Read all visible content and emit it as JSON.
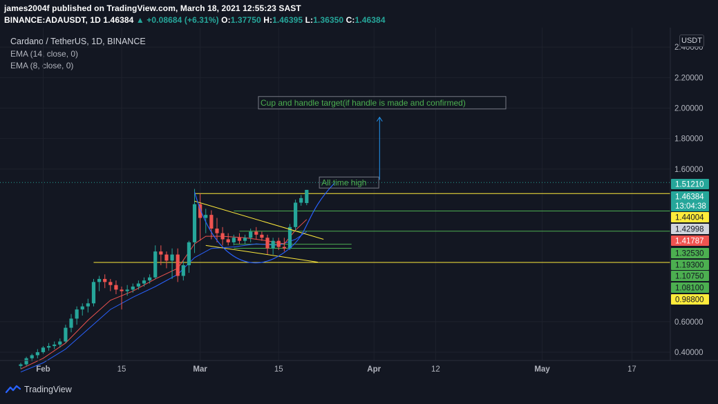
{
  "header": {
    "author": "james2004f",
    "published_text": "published on TradingView.com, March 18, 2021 12:55:23 SAST",
    "symbol": "BINANCE:ADAUSDT, 1D",
    "last": "1.46384",
    "change": "▲ +0.08684 (+6.31%)",
    "o_label": "O:",
    "o_value": "1.37750",
    "h_label": "H:",
    "h_value": "1.46395",
    "l_label": "L:",
    "l_value": "1.36350",
    "c_label": "C:",
    "c_value": "1.46384"
  },
  "legend": {
    "title": "Cardano / TetherUS, 1D, BINANCE",
    "ema14": "EMA (14, close, 0)",
    "ema8": "EMA (8, close, 0)"
  },
  "currency": "USDT",
  "footer": {
    "brand": "TradingView"
  },
  "annotations": {
    "target_label": "Cup and handle target(if handle is made and confirmed)",
    "ath_label": "All time high"
  },
  "colors": {
    "background": "#131722",
    "up": "#26a69a",
    "down": "#ef5350",
    "ema14": "#2962ff",
    "ema8": "#ef5350",
    "trendline": "#ffeb3b",
    "level_green": "#4caf50",
    "level_yellow": "#ffeb3b"
  },
  "chart_data": {
    "type": "candlestick",
    "symbol": "ADAUSDT",
    "interval": "1D",
    "ylim": [
      0.35,
      2.55
    ],
    "y_ticks": [
      "2.40000",
      "2.20000",
      "2.00000",
      "1.80000",
      "1.60000",
      "0.60000",
      "0.40000"
    ],
    "y_tick_values": [
      2.4,
      2.2,
      2.0,
      1.8,
      1.6,
      0.6,
      0.4
    ],
    "x_ticks": [
      "Feb",
      "15",
      "Mar",
      "15",
      "Apr",
      "12",
      "May",
      "17"
    ],
    "x_tick_days": [
      0,
      14,
      28,
      42,
      59,
      70,
      89,
      105
    ],
    "x_range_days": [
      -4,
      110
    ],
    "price_tags": [
      {
        "label": "1.51210",
        "value": 1.5121,
        "color": "#26a69a"
      },
      {
        "label": "1.46384",
        "sub": "13:04:38",
        "value": 1.46384,
        "color": "#26a69a"
      },
      {
        "label": "1.44004",
        "value": 1.44004,
        "color": "#ffeb3b"
      },
      {
        "label": "1.42998",
        "value": 1.42998,
        "color": "#d1d4dc"
      },
      {
        "label": "1.41787",
        "value": 1.41787,
        "color": "#ef5350"
      },
      {
        "label": "1.32530",
        "value": 1.3253,
        "color": "#4caf50"
      },
      {
        "label": "1.19300",
        "value": 1.193,
        "color": "#4caf50"
      },
      {
        "label": "1.10750",
        "value": 1.1075,
        "color": "#4caf50"
      },
      {
        "label": "1.08100",
        "value": 1.081,
        "color": "#4caf50"
      },
      {
        "label": "0.98800",
        "value": 0.988,
        "color": "#ffeb3b"
      }
    ],
    "candles": [
      {
        "d": -4,
        "o": 0.31,
        "h": 0.33,
        "l": 0.29,
        "c": 0.32
      },
      {
        "d": -3,
        "o": 0.32,
        "h": 0.37,
        "l": 0.31,
        "c": 0.36
      },
      {
        "d": -2,
        "o": 0.36,
        "h": 0.39,
        "l": 0.34,
        "c": 0.38
      },
      {
        "d": -1,
        "o": 0.38,
        "h": 0.42,
        "l": 0.36,
        "c": 0.4
      },
      {
        "d": 0,
        "o": 0.4,
        "h": 0.44,
        "l": 0.39,
        "c": 0.43
      },
      {
        "d": 1,
        "o": 0.43,
        "h": 0.46,
        "l": 0.41,
        "c": 0.44
      },
      {
        "d": 2,
        "o": 0.44,
        "h": 0.47,
        "l": 0.42,
        "c": 0.45
      },
      {
        "d": 3,
        "o": 0.45,
        "h": 0.49,
        "l": 0.43,
        "c": 0.47
      },
      {
        "d": 4,
        "o": 0.47,
        "h": 0.58,
        "l": 0.46,
        "c": 0.56
      },
      {
        "d": 5,
        "o": 0.56,
        "h": 0.65,
        "l": 0.53,
        "c": 0.62
      },
      {
        "d": 6,
        "o": 0.62,
        "h": 0.7,
        "l": 0.58,
        "c": 0.68
      },
      {
        "d": 7,
        "o": 0.68,
        "h": 0.72,
        "l": 0.64,
        "c": 0.7
      },
      {
        "d": 8,
        "o": 0.7,
        "h": 0.75,
        "l": 0.66,
        "c": 0.72
      },
      {
        "d": 9,
        "o": 0.72,
        "h": 0.88,
        "l": 0.7,
        "c": 0.86
      },
      {
        "d": 10,
        "o": 0.86,
        "h": 0.9,
        "l": 0.8,
        "c": 0.88
      },
      {
        "d": 11,
        "o": 0.88,
        "h": 0.91,
        "l": 0.82,
        "c": 0.86
      },
      {
        "d": 12,
        "o": 0.86,
        "h": 0.88,
        "l": 0.8,
        "c": 0.84
      },
      {
        "d": 13,
        "o": 0.84,
        "h": 0.87,
        "l": 0.78,
        "c": 0.81
      },
      {
        "d": 14,
        "o": 0.81,
        "h": 0.83,
        "l": 0.68,
        "c": 0.8
      },
      {
        "d": 15,
        "o": 0.8,
        "h": 0.84,
        "l": 0.77,
        "c": 0.81
      },
      {
        "d": 16,
        "o": 0.81,
        "h": 0.85,
        "l": 0.79,
        "c": 0.83
      },
      {
        "d": 17,
        "o": 0.83,
        "h": 0.87,
        "l": 0.81,
        "c": 0.85
      },
      {
        "d": 18,
        "o": 0.85,
        "h": 0.89,
        "l": 0.83,
        "c": 0.87
      },
      {
        "d": 19,
        "o": 0.87,
        "h": 0.91,
        "l": 0.85,
        "c": 0.89
      },
      {
        "d": 20,
        "o": 0.89,
        "h": 1.1,
        "l": 0.88,
        "c": 1.06
      },
      {
        "d": 21,
        "o": 1.06,
        "h": 1.1,
        "l": 0.97,
        "c": 1.04
      },
      {
        "d": 22,
        "o": 1.04,
        "h": 1.06,
        "l": 0.95,
        "c": 1.0
      },
      {
        "d": 23,
        "o": 1.0,
        "h": 1.08,
        "l": 0.88,
        "c": 1.04
      },
      {
        "d": 24,
        "o": 1.04,
        "h": 1.08,
        "l": 0.86,
        "c": 0.9
      },
      {
        "d": 25,
        "o": 0.9,
        "h": 1.0,
        "l": 0.87,
        "c": 0.97
      },
      {
        "d": 26,
        "o": 0.97,
        "h": 1.13,
        "l": 0.92,
        "c": 1.12
      },
      {
        "d": 27,
        "o": 1.12,
        "h": 1.47,
        "l": 1.05,
        "c": 1.37
      },
      {
        "d": 28,
        "o": 1.37,
        "h": 1.44,
        "l": 1.13,
        "c": 1.28
      },
      {
        "d": 29,
        "o": 1.28,
        "h": 1.34,
        "l": 1.18,
        "c": 1.3
      },
      {
        "d": 30,
        "o": 1.3,
        "h": 1.33,
        "l": 1.14,
        "c": 1.21
      },
      {
        "d": 31,
        "o": 1.21,
        "h": 1.28,
        "l": 1.12,
        "c": 1.18
      },
      {
        "d": 32,
        "o": 1.18,
        "h": 1.22,
        "l": 1.1,
        "c": 1.14
      },
      {
        "d": 33,
        "o": 1.14,
        "h": 1.18,
        "l": 1.1,
        "c": 1.12
      },
      {
        "d": 34,
        "o": 1.12,
        "h": 1.17,
        "l": 1.1,
        "c": 1.15
      },
      {
        "d": 35,
        "o": 1.15,
        "h": 1.18,
        "l": 1.11,
        "c": 1.13
      },
      {
        "d": 36,
        "o": 1.13,
        "h": 1.17,
        "l": 1.11,
        "c": 1.15
      },
      {
        "d": 37,
        "o": 1.15,
        "h": 1.21,
        "l": 1.12,
        "c": 1.19
      },
      {
        "d": 38,
        "o": 1.19,
        "h": 1.22,
        "l": 1.14,
        "c": 1.17
      },
      {
        "d": 39,
        "o": 1.17,
        "h": 1.19,
        "l": 1.13,
        "c": 1.15
      },
      {
        "d": 40,
        "o": 1.15,
        "h": 1.17,
        "l": 1.04,
        "c": 1.08
      },
      {
        "d": 41,
        "o": 1.08,
        "h": 1.15,
        "l": 1.04,
        "c": 1.13
      },
      {
        "d": 42,
        "o": 1.13,
        "h": 1.15,
        "l": 1.07,
        "c": 1.09
      },
      {
        "d": 43,
        "o": 1.09,
        "h": 1.15,
        "l": 1.06,
        "c": 1.08
      },
      {
        "d": 44,
        "o": 1.08,
        "h": 1.24,
        "l": 1.07,
        "c": 1.22
      },
      {
        "d": 45,
        "o": 1.22,
        "h": 1.4,
        "l": 1.2,
        "c": 1.38
      },
      {
        "d": 46,
        "o": 1.38,
        "h": 1.43,
        "l": 1.36,
        "c": 1.41
      },
      {
        "d": 47,
        "o": 1.3775,
        "h": 1.46395,
        "l": 1.3635,
        "c": 1.46384
      }
    ],
    "ema14": [
      [
        -4,
        0.27
      ],
      [
        0,
        0.33
      ],
      [
        4,
        0.42
      ],
      [
        8,
        0.55
      ],
      [
        12,
        0.68
      ],
      [
        16,
        0.76
      ],
      [
        20,
        0.83
      ],
      [
        24,
        0.91
      ],
      [
        27,
        1.02
      ],
      [
        30,
        1.08
      ],
      [
        34,
        1.09
      ],
      [
        38,
        1.11
      ],
      [
        42,
        1.1
      ],
      [
        45,
        1.14
      ],
      [
        47,
        1.19
      ]
    ],
    "ema8": [
      [
        -4,
        0.29
      ],
      [
        0,
        0.36
      ],
      [
        4,
        0.46
      ],
      [
        8,
        0.61
      ],
      [
        12,
        0.74
      ],
      [
        16,
        0.8
      ],
      [
        20,
        0.88
      ],
      [
        24,
        0.95
      ],
      [
        27,
        1.11
      ],
      [
        29,
        1.16
      ],
      [
        32,
        1.16
      ],
      [
        36,
        1.15
      ],
      [
        40,
        1.13
      ],
      [
        43,
        1.11
      ],
      [
        45,
        1.2
      ],
      [
        47,
        1.27
      ]
    ],
    "trendlines": [
      {
        "from": [
          27,
          1.39
        ],
        "to": [
          50,
          1.14
        ]
      },
      {
        "from": [
          29,
          1.1
        ],
        "to": [
          49,
          0.99
        ]
      }
    ],
    "levels": [
      {
        "value": 1.5121,
        "from_day": 49,
        "color": "#26a69a",
        "style": "dotted"
      },
      {
        "value": 1.44004,
        "from_day": 27,
        "color": "#ffeb3b"
      },
      {
        "value": 1.3253,
        "from_day": 34,
        "color": "#4caf50"
      },
      {
        "value": 1.193,
        "from_day": 35,
        "color": "#4caf50"
      },
      {
        "value": 1.1075,
        "from_day": 34,
        "to_day": 55,
        "color": "#4caf50"
      },
      {
        "value": 1.081,
        "from_day": 34,
        "to_day": 55,
        "color": "#4caf50"
      },
      {
        "value": 0.988,
        "from_day": 9,
        "color": "#ffeb3b"
      }
    ],
    "cup_curve": [
      [
        27,
        1.45
      ],
      [
        30,
        1.06
      ],
      [
        36,
        0.99
      ],
      [
        42,
        1.03
      ],
      [
        46,
        1.28
      ],
      [
        52,
        1.51
      ]
    ]
  }
}
